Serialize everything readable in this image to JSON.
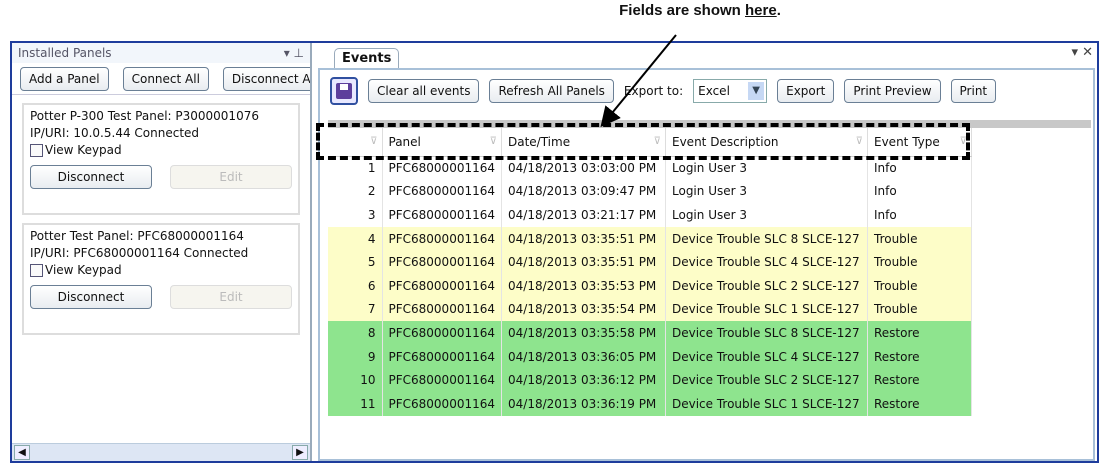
{
  "caption": {
    "before": "Fields are shown ",
    "link": "here",
    "after": "."
  },
  "left": {
    "title": "Installed Panels",
    "buttons": [
      "Add a Panel",
      "Connect All",
      "Disconnect All"
    ],
    "panels": [
      {
        "name": "Potter P-300 Test Panel: P3000001076",
        "ip": "IP/URI:   10.0.5.44   Connected",
        "keypad": "View Keypad",
        "disconnect": "Disconnect",
        "edit": "Edit"
      },
      {
        "name": "Potter Test Panel: PFC68000001164",
        "ip": "IP/URI:   PFC68000001164   Connected",
        "keypad": "View Keypad",
        "disconnect": "Disconnect",
        "edit": "Edit"
      }
    ]
  },
  "events": {
    "tab": "Events",
    "clear": "Clear all events",
    "refresh": "Refresh All Panels",
    "export_to": "Export to:",
    "format": "Excel",
    "export": "Export",
    "print_preview": "Print Preview",
    "print": "Print",
    "columns": [
      "",
      "Panel",
      "Date/Time",
      "Event Description",
      "Event Type"
    ],
    "rows": [
      [
        "1",
        "PFC68000001164",
        "04/18/2013 03:03:00 PM",
        "Login User 3",
        "Info"
      ],
      [
        "2",
        "PFC68000001164",
        "04/18/2013 03:09:47 PM",
        "Login User 3",
        "Info"
      ],
      [
        "3",
        "PFC68000001164",
        "04/18/2013 03:21:17 PM",
        "Login User 3",
        "Info"
      ],
      [
        "4",
        "PFC68000001164",
        "04/18/2013 03:35:51 PM",
        "Device Trouble SLC 8 SLCE-127",
        "Trouble"
      ],
      [
        "5",
        "PFC68000001164",
        "04/18/2013 03:35:51 PM",
        "Device Trouble SLC 4 SLCE-127",
        "Trouble"
      ],
      [
        "6",
        "PFC68000001164",
        "04/18/2013 03:35:53 PM",
        "Device Trouble SLC 2 SLCE-127",
        "Trouble"
      ],
      [
        "7",
        "PFC68000001164",
        "04/18/2013 03:35:54 PM",
        "Device Trouble SLC 1 SLCE-127",
        "Trouble"
      ],
      [
        "8",
        "PFC68000001164",
        "04/18/2013 03:35:58 PM",
        "Device Trouble SLC 8 SLCE-127",
        "Restore"
      ],
      [
        "9",
        "PFC68000001164",
        "04/18/2013 03:36:05 PM",
        "Device Trouble SLC 4 SLCE-127",
        "Restore"
      ],
      [
        "10",
        "PFC68000001164",
        "04/18/2013 03:36:12 PM",
        "Device Trouble SLC 2 SLCE-127",
        "Restore"
      ],
      [
        "11",
        "PFC68000001164",
        "04/18/2013 03:36:19 PM",
        "Device Trouble SLC 1 SLCE-127",
        "Restore"
      ]
    ]
  },
  "colors": {
    "trouble": "#fdfdc8",
    "restore": "#8ee48e",
    "border": "#1e3c9c"
  }
}
